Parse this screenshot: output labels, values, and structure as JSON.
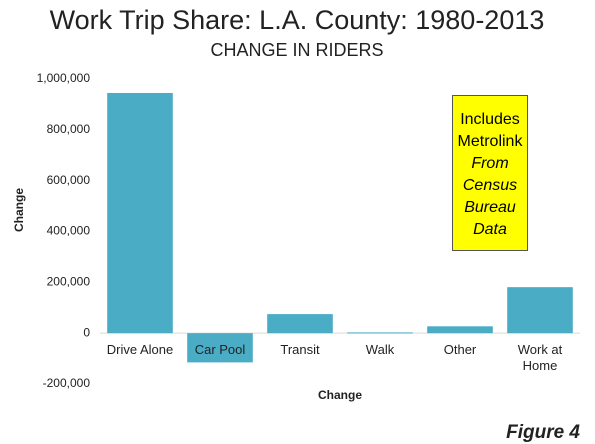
{
  "chart_data": {
    "type": "bar",
    "title": "Work Trip Share: L.A. County: 1980-2013",
    "subtitle": "CHANGE IN RIDERS",
    "y_label": "Change",
    "x_label": "Change",
    "categories": [
      "Drive Alone",
      "Car Pool",
      "Transit",
      "Walk",
      "Other",
      "Work at Home"
    ],
    "values": [
      945000,
      -115000,
      75000,
      3000,
      27000,
      181000
    ],
    "color": "#4bacc6",
    "ylim": [
      -200000,
      1000000
    ],
    "yticks": [
      {
        "value": -200000,
        "label": "-200,000"
      },
      0,
      {
        "value": 200000,
        "label": "200,000"
      },
      {
        "value": 400000,
        "label": "400,000"
      },
      {
        "value": 600000,
        "label": "600,000"
      },
      {
        "value": 800000,
        "label": "800,000"
      },
      {
        "value": 1000000,
        "label": "1,000,000"
      }
    ],
    "grid": false,
    "annotations": [
      "Includes Metrolink",
      "From Census Bureau Data"
    ],
    "figure_label": "Figure 4"
  }
}
